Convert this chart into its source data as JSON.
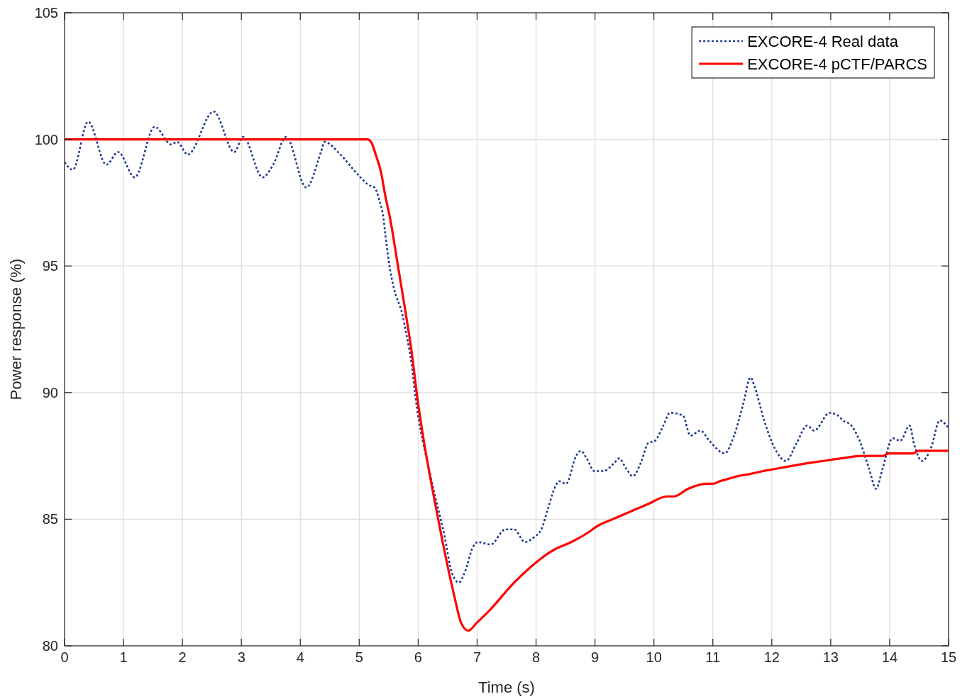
{
  "chart_data": {
    "type": "line",
    "xlabel": "Time (s)",
    "ylabel": "Power response (%)",
    "xlim": [
      0,
      15
    ],
    "ylim": [
      80,
      105
    ],
    "xticks": [
      0,
      1,
      2,
      3,
      4,
      5,
      6,
      7,
      8,
      9,
      10,
      11,
      12,
      13,
      14,
      15
    ],
    "yticks": [
      80,
      85,
      90,
      95,
      100,
      105
    ],
    "grid": true,
    "legend": "top right",
    "series": [
      {
        "name": "EXCORE-4 Real data",
        "color": "#1f3a93",
        "line_style": "dotted",
        "x": [
          0,
          0.14,
          0.4,
          0.71,
          0.91,
          1.19,
          1.53,
          1.81,
          1.91,
          2.09,
          2.53,
          2.88,
          3.03,
          3.36,
          3.54,
          3.76,
          4.1,
          4.35,
          4.41,
          4.68,
          4.98,
          5.16,
          5.26,
          5.34,
          5.41,
          5.44,
          5.5,
          5.59,
          5.73,
          5.8,
          5.89,
          5.95,
          6.21,
          6.45,
          6.57,
          6.69,
          6.79,
          6.93,
          7.01,
          7.23,
          7.48,
          7.63,
          7.81,
          7.97,
          8.09,
          8.2,
          8.31,
          8.39,
          8.51,
          8.68,
          8.76,
          8.86,
          8.99,
          9.14,
          9.32,
          9.41,
          9.53,
          9.64,
          9.79,
          9.9,
          10.02,
          10.16,
          10.27,
          10.49,
          10.62,
          10.79,
          10.94,
          11.2,
          11.36,
          11.52,
          11.64,
          11.7,
          11.87,
          12.05,
          12.24,
          12.42,
          12.6,
          12.72,
          12.98,
          13.12,
          13.21,
          13.35,
          13.49,
          13.65,
          13.77,
          13.88,
          14.05,
          14.18,
          14.34,
          14.41,
          14.55,
          14.7,
          14.85,
          15
        ],
        "values": [
          99.1,
          98.8,
          100.7,
          99.0,
          99.5,
          98.5,
          100.5,
          99.8,
          99.9,
          99.4,
          101.1,
          99.5,
          100.1,
          98.5,
          99.0,
          100.1,
          98.1,
          99.5,
          99.9,
          99.4,
          98.6,
          98.2,
          98.1,
          97.6,
          96.9,
          96.3,
          95.2,
          94.1,
          93.1,
          92.3,
          91.1,
          89.9,
          86.7,
          84.3,
          82.9,
          82.5,
          82.9,
          83.9,
          84.1,
          84.0,
          84.6,
          84.6,
          84.1,
          84.3,
          84.6,
          85.4,
          86.2,
          86.5,
          86.4,
          87.5,
          87.7,
          87.4,
          86.9,
          86.9,
          87.2,
          87.4,
          87.0,
          86.7,
          87.3,
          88.0,
          88.1,
          88.7,
          89.2,
          89.1,
          88.3,
          88.5,
          88.1,
          87.6,
          88.3,
          89.6,
          90.6,
          90.3,
          88.9,
          87.8,
          87.3,
          88.0,
          88.7,
          88.5,
          89.2,
          89.1,
          88.9,
          88.7,
          88.1,
          87.0,
          86.2,
          87.0,
          88.2,
          88.1,
          88.7,
          88.0,
          87.3,
          87.8,
          88.9,
          88.6
        ]
      },
      {
        "name": "EXCORE-4 pCTF/PARCS",
        "color": "#ff0000",
        "line_style": "solid",
        "x": [
          0,
          5.14,
          5.2,
          5.28,
          5.37,
          5.44,
          5.53,
          5.65,
          5.77,
          5.89,
          5.98,
          6.34,
          6.61,
          6.73,
          6.85,
          6.99,
          7.21,
          7.63,
          8.31,
          8.6,
          8.9,
          9.02,
          9.3,
          9.6,
          9.9,
          10.22,
          10.34,
          10.58,
          10.88,
          11.0,
          11.12,
          11.27,
          11.42,
          11.66,
          11.85,
          12.09,
          12.33,
          12.57,
          12.87,
          13.17,
          13.53,
          13.89,
          13.98,
          14.4,
          14.49,
          15
        ],
        "values": [
          100,
          100,
          99.9,
          99.4,
          98.7,
          97.8,
          96.8,
          95.1,
          93.4,
          91.6,
          89.9,
          85.0,
          82.0,
          80.9,
          80.6,
          80.9,
          81.4,
          82.5,
          83.8,
          84.1,
          84.5,
          84.7,
          85.0,
          85.3,
          85.6,
          85.9,
          85.9,
          86.2,
          86.4,
          86.4,
          86.5,
          86.6,
          86.7,
          86.8,
          86.9,
          87.0,
          87.1,
          87.2,
          87.3,
          87.4,
          87.5,
          87.5,
          87.6,
          87.6,
          87.7,
          87.7
        ]
      }
    ]
  }
}
